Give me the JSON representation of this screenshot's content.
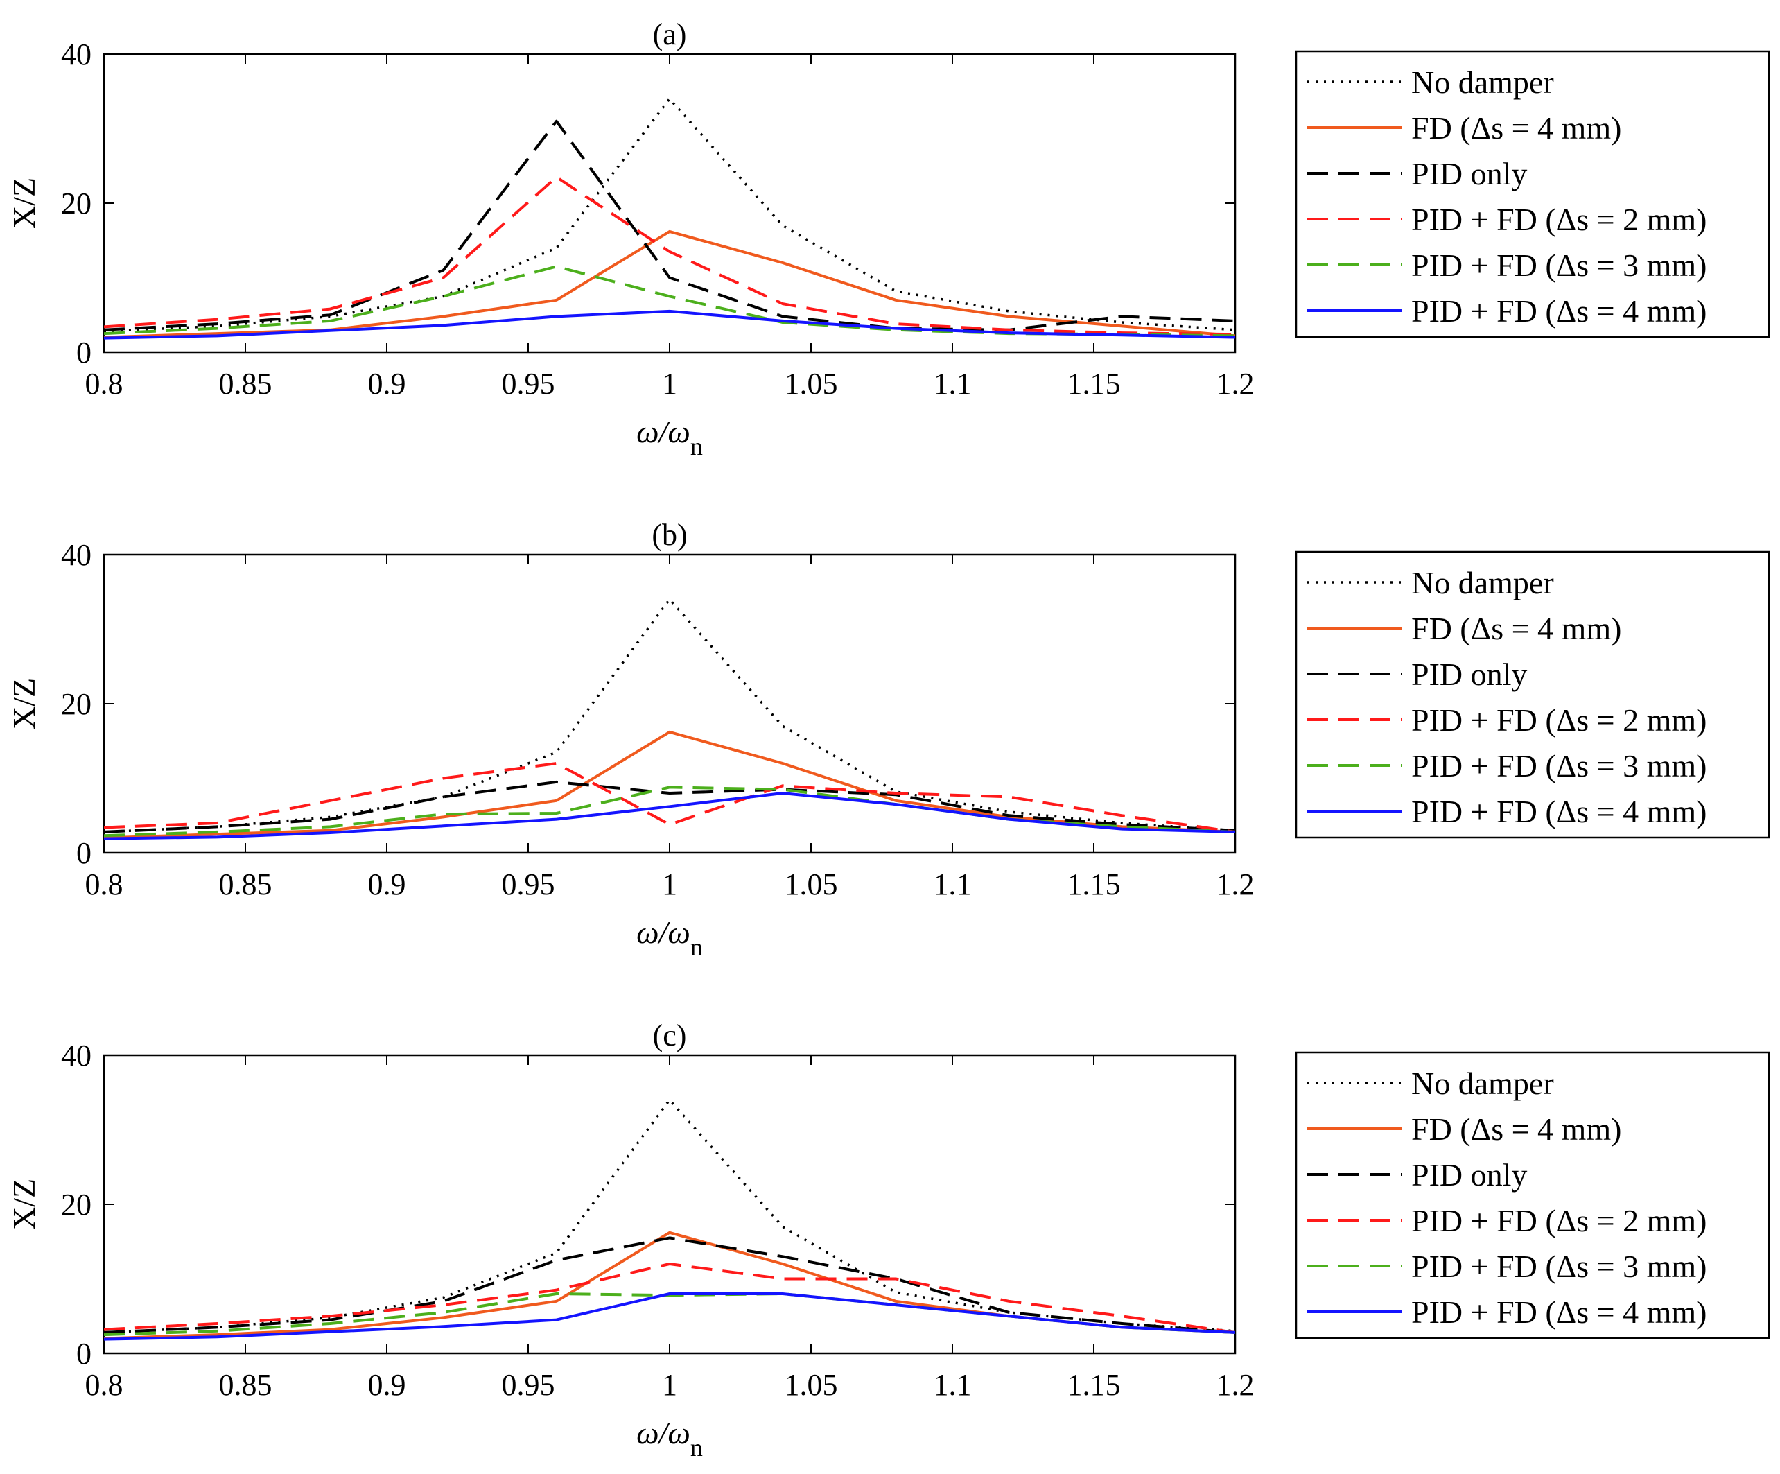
{
  "styles": {
    "No damper": {
      "color": "#000000",
      "dash": "3,9",
      "width": 3.5
    },
    "FD (Δs = 4 mm)": {
      "color": "#f05a1e",
      "dash": "",
      "width": 4
    },
    "PID only": {
      "color": "#000000",
      "dash": "30,15",
      "width": 4
    },
    "PID + FD (Δs = 2 mm)": {
      "color": "#ff1a1a",
      "dash": "30,15",
      "width": 4
    },
    "PID + FD (Δs = 3 mm)": {
      "color": "#4caf1c",
      "dash": "30,15",
      "width": 4
    },
    "PID + FD (Δs = 4 mm)": {
      "color": "#1414ff",
      "dash": "",
      "width": 4
    }
  },
  "chart_data": [
    {
      "type": "line",
      "title": "(a)",
      "xlabel_main": "ω/ω",
      "xlabel_sub": "n",
      "ylabel": "X/Z",
      "xlim": [
        0.8,
        1.2
      ],
      "ylim": [
        0,
        40
      ],
      "xticks": [
        "0.8",
        "0.85",
        "0.9",
        "0.95",
        "1",
        "1.05",
        "1.1",
        "1.15",
        "1.2"
      ],
      "yticks": [
        "0",
        "20",
        "40"
      ],
      "legend_position": "right",
      "x": [
        0.8,
        0.84,
        0.88,
        0.92,
        0.96,
        1.0,
        1.04,
        1.08,
        1.12,
        1.16,
        1.2
      ],
      "series": [
        {
          "name": "No damper",
          "values": [
            2.8,
            3.5,
            4.8,
            7.5,
            14,
            34,
            17,
            8.2,
            5.5,
            4,
            3
          ]
        },
        {
          "name": "FD (Δs = 4 mm)",
          "values": [
            2,
            2.5,
            3,
            4.8,
            7,
            16.2,
            12,
            7,
            4.8,
            3.5,
            2.2
          ]
        },
        {
          "name": "PID only",
          "values": [
            3,
            3.8,
            5,
            11,
            31,
            10,
            4.8,
            3.2,
            3,
            4.8,
            4.2
          ]
        },
        {
          "name": "PID + FD (Δs = 2 mm)",
          "values": [
            3.4,
            4.4,
            5.8,
            10,
            23.5,
            13.5,
            6.5,
            3.8,
            3,
            2.6,
            2.4
          ]
        },
        {
          "name": "PID + FD (Δs = 3 mm)",
          "values": [
            2.5,
            3.2,
            4.2,
            7.5,
            11.5,
            7.5,
            4,
            3,
            2.5,
            2.4,
            2.2
          ]
        },
        {
          "name": "PID + FD (Δs = 4 mm)",
          "values": [
            1.9,
            2.2,
            2.9,
            3.6,
            4.8,
            5.5,
            4.2,
            3.2,
            2.6,
            2.3,
            2
          ]
        }
      ]
    },
    {
      "type": "line",
      "title": "(b)",
      "xlabel_main": "ω/ω",
      "xlabel_sub": "n",
      "ylabel": "X/Z",
      "xlim": [
        0.8,
        1.2
      ],
      "ylim": [
        0,
        40
      ],
      "xticks": [
        "0.8",
        "0.85",
        "0.9",
        "0.95",
        "1",
        "1.05",
        "1.1",
        "1.15",
        "1.2"
      ],
      "yticks": [
        "0",
        "20",
        "40"
      ],
      "legend_position": "right",
      "x": [
        0.8,
        0.84,
        0.88,
        0.92,
        0.96,
        1.0,
        1.04,
        1.08,
        1.12,
        1.16,
        1.2
      ],
      "series": [
        {
          "name": "No damper",
          "values": [
            2.8,
            3.5,
            4.8,
            7.5,
            13.5,
            34,
            17,
            8.2,
            5.5,
            4,
            3
          ]
        },
        {
          "name": "FD (Δs = 4 mm)",
          "values": [
            2,
            2.5,
            3,
            4.8,
            7,
            16.2,
            12,
            7,
            4.8,
            3.5,
            2.8
          ]
        },
        {
          "name": "PID only",
          "values": [
            2.8,
            3.5,
            4.5,
            7.5,
            9.5,
            8,
            8.5,
            7.8,
            5,
            3.8,
            3
          ]
        },
        {
          "name": "PID + FD (Δs = 2 mm)",
          "values": [
            3.4,
            4,
            7,
            10,
            12,
            3.8,
            9,
            8,
            7.5,
            5,
            2.8
          ]
        },
        {
          "name": "PID + FD (Δs = 3 mm)",
          "values": [
            2.3,
            2.8,
            3.5,
            5.2,
            5.3,
            8.8,
            8.5,
            6.5,
            4.5,
            3.5,
            2.8
          ]
        },
        {
          "name": "PID + FD (Δs = 4 mm)",
          "values": [
            1.9,
            2.1,
            2.7,
            3.6,
            4.5,
            6.2,
            8,
            6.5,
            4.5,
            3.2,
            2.8
          ]
        }
      ]
    },
    {
      "type": "line",
      "title": "(c)",
      "xlabel_main": "ω/ω",
      "xlabel_sub": "n",
      "ylabel": "X/Z",
      "xlim": [
        0.8,
        1.2
      ],
      "ylim": [
        0,
        40
      ],
      "xticks": [
        "0.8",
        "0.85",
        "0.9",
        "0.95",
        "1",
        "1.05",
        "1.1",
        "1.15",
        "1.2"
      ],
      "yticks": [
        "0",
        "20",
        "40"
      ],
      "legend_position": "right",
      "x": [
        0.8,
        0.84,
        0.88,
        0.92,
        0.96,
        1.0,
        1.04,
        1.08,
        1.12,
        1.16,
        1.2
      ],
      "series": [
        {
          "name": "No damper",
          "values": [
            2.8,
            3.5,
            4.8,
            7.5,
            13.5,
            34,
            17,
            8.2,
            5.5,
            4,
            3
          ]
        },
        {
          "name": "FD (Δs = 4 mm)",
          "values": [
            2,
            2.5,
            3.2,
            4.8,
            7,
            16.2,
            12,
            7,
            5,
            3.5,
            2.8
          ]
        },
        {
          "name": "PID only",
          "values": [
            2.8,
            3.5,
            4.5,
            7,
            12.5,
            15.5,
            13,
            10,
            5.5,
            4,
            2.8
          ]
        },
        {
          "name": "PID + FD (Δs = 2 mm)",
          "values": [
            3.2,
            4,
            5,
            6.5,
            8.5,
            12,
            10,
            10,
            7,
            5,
            2.8
          ]
        },
        {
          "name": "PID + FD (Δs = 3 mm)",
          "values": [
            2.5,
            3,
            4,
            5.5,
            8,
            7.8,
            8,
            6.5,
            5,
            3.5,
            2.8
          ]
        },
        {
          "name": "PID + FD (Δs = 4 mm)",
          "values": [
            1.9,
            2.2,
            2.9,
            3.6,
            4.5,
            8,
            8,
            6.5,
            5,
            3.5,
            2.8
          ]
        }
      ]
    }
  ]
}
